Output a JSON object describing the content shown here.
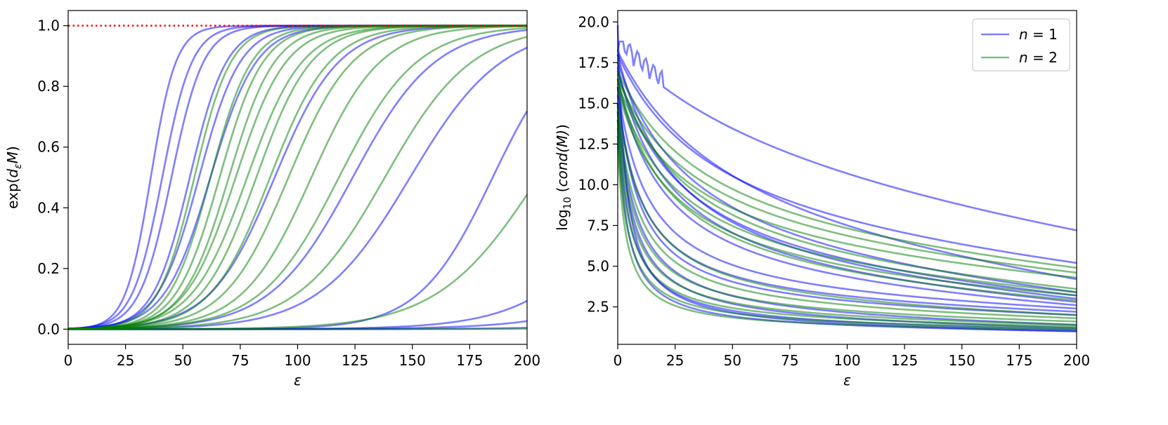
{
  "chart_data": [
    {
      "type": "line",
      "xlabel": "ε",
      "ylabel": "exp(d_εM)",
      "ylabel_parts": {
        "pre": "exp(",
        "var": "d",
        "sub": "ε",
        "post_var": "M",
        "post": ")"
      },
      "xlim": [
        0,
        200
      ],
      "ylim": [
        -0.05,
        1.05
      ],
      "xticks": [
        0,
        25,
        50,
        75,
        100,
        125,
        150,
        175,
        200
      ],
      "yticks": [
        0.0,
        0.2,
        0.4,
        0.6,
        0.8,
        1.0
      ],
      "ytick_labels": [
        "0.0",
        "0.2",
        "0.4",
        "0.6",
        "0.8",
        "1.0"
      ],
      "reference_line": {
        "y": 1.0,
        "color": "#ff0000",
        "style": "dotted"
      },
      "series": [
        {
          "name": "n = 1",
          "color": "#0000ff",
          "alpha": 0.5,
          "sigmoids": [
            {
              "center": 36,
              "width": 5.5
            },
            {
              "center": 41,
              "width": 6.5
            },
            {
              "center": 45,
              "width": 7
            },
            {
              "center": 53,
              "width": 8
            },
            {
              "center": 57,
              "width": 9
            },
            {
              "center": 62,
              "width": 10
            },
            {
              "center": 90,
              "width": 14
            },
            {
              "center": 124,
              "width": 18
            },
            {
              "center": 149,
              "width": 20
            },
            {
              "center": 185,
              "width": 16
            },
            {
              "center": 250,
              "width": 22
            },
            {
              "center": 290,
              "width": 25
            },
            {
              "center": 350,
              "width": 28
            }
          ]
        },
        {
          "name": "n = 2",
          "color": "#008000",
          "alpha": 0.5,
          "sigmoids": [
            {
              "center": 55,
              "width": 8
            },
            {
              "center": 62,
              "width": 9
            },
            {
              "center": 66,
              "width": 9.5
            },
            {
              "center": 70,
              "width": 10
            },
            {
              "center": 73,
              "width": 11
            },
            {
              "center": 78,
              "width": 12
            },
            {
              "center": 82,
              "width": 12
            },
            {
              "center": 88,
              "width": 13
            },
            {
              "center": 96,
              "width": 14
            },
            {
              "center": 106,
              "width": 15
            },
            {
              "center": 118,
              "width": 17
            },
            {
              "center": 138,
              "width": 19
            },
            {
              "center": 205,
              "width": 22
            },
            {
              "center": 400,
              "width": 30
            }
          ]
        }
      ]
    },
    {
      "type": "line",
      "xlabel": "ε",
      "ylabel": "log10(cond(M))",
      "ylabel_parts": {
        "pre": "log",
        "sub": "10",
        "mid": " (",
        "var": "cond(M)",
        "post": ")"
      },
      "xlim": [
        0,
        200
      ],
      "ylim": [
        0.2,
        20.7
      ],
      "xticks": [
        0,
        25,
        50,
        75,
        100,
        125,
        150,
        175,
        200
      ],
      "yticks": [
        2.5,
        5.0,
        7.5,
        10.0,
        12.5,
        15.0,
        17.5,
        20.0
      ],
      "ytick_labels": [
        "2.5",
        "5.0",
        "7.5",
        "10.0",
        "12.5",
        "15.0",
        "17.5",
        "20.0"
      ],
      "legend": {
        "position": "top-right",
        "entries": [
          {
            "label_var": "n",
            "label_rest": " = 1",
            "color": "#0000ff"
          },
          {
            "label_var": "n",
            "label_rest": " = 2",
            "color": "#008000"
          }
        ]
      },
      "series": [
        {
          "name": "n = 1",
          "color": "#0000ff",
          "alpha": 0.5,
          "curves": [
            {
              "start": 18.5,
              "end": 7.2,
              "decay": 0.6,
              "ripple": true
            },
            {
              "start": 18.0,
              "end": 5.2,
              "decay": 1.2
            },
            {
              "start": 18.2,
              "end": 4.2,
              "decay": 1.0
            },
            {
              "start": 17.5,
              "end": 3.4,
              "decay": 1.5
            },
            {
              "start": 17.0,
              "end": 3.2,
              "decay": 1.8
            },
            {
              "start": 18.0,
              "end": 3.0,
              "decay": 2.0
            },
            {
              "start": 17.2,
              "end": 2.8,
              "decay": 2.2
            },
            {
              "start": 16.5,
              "end": 2.6,
              "decay": 2.5
            },
            {
              "start": 16.0,
              "end": 2.4,
              "decay": 4.0
            },
            {
              "start": 15.5,
              "end": 2.2,
              "decay": 5.0
            },
            {
              "start": 16.0,
              "end": 2.0,
              "decay": 6.0
            },
            {
              "start": 15.0,
              "end": 1.4,
              "decay": 7.0
            },
            {
              "start": 15.0,
              "end": 1.2,
              "decay": 9.0
            },
            {
              "start": 14.5,
              "end": 1.1,
              "decay": 12.0
            },
            {
              "start": 14.0,
              "end": 1.0,
              "decay": 16.0
            },
            {
              "start": 19.8,
              "end": 1.0,
              "decay": 20.0
            }
          ]
        },
        {
          "name": "n = 2",
          "color": "#008000",
          "alpha": 0.5,
          "curves": [
            {
              "start": 17.0,
              "end": 4.9,
              "decay": 1.3
            },
            {
              "start": 16.5,
              "end": 4.6,
              "decay": 1.4
            },
            {
              "start": 16.2,
              "end": 4.3,
              "decay": 1.6
            },
            {
              "start": 16.8,
              "end": 3.6,
              "decay": 1.7
            },
            {
              "start": 16.0,
              "end": 3.4,
              "decay": 1.9
            },
            {
              "start": 15.8,
              "end": 3.2,
              "decay": 2.1
            },
            {
              "start": 16.5,
              "end": 2.9,
              "decay": 2.3
            },
            {
              "start": 15.0,
              "end": 2.0,
              "decay": 4.5
            },
            {
              "start": 14.8,
              "end": 1.8,
              "decay": 6.0
            },
            {
              "start": 14.5,
              "end": 1.6,
              "decay": 7.5
            },
            {
              "start": 14.0,
              "end": 1.4,
              "decay": 9.0
            },
            {
              "start": 13.5,
              "end": 1.3,
              "decay": 11.0
            },
            {
              "start": 13.0,
              "end": 1.2,
              "decay": 14.0
            },
            {
              "start": 12.5,
              "end": 1.1,
              "decay": 18.0
            }
          ]
        }
      ]
    }
  ]
}
